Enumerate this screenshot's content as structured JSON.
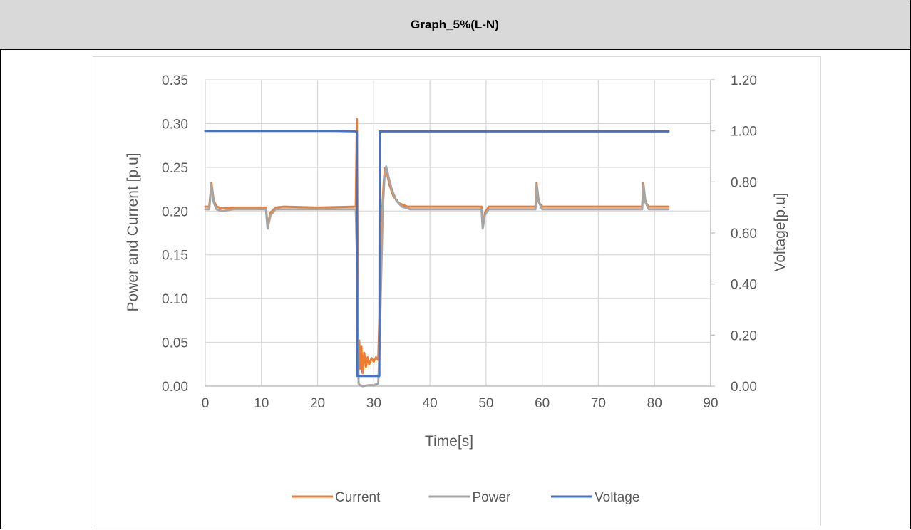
{
  "header": {
    "title": "Graph_5%(L-N)"
  },
  "chart_data": {
    "type": "line",
    "title": "",
    "xlabel": "Time[s]",
    "ylabel": "Power and Current [p.u]",
    "y2label": "Voltage[p.u]",
    "xlim": [
      0,
      90
    ],
    "ylim": [
      0,
      0.35
    ],
    "y2lim": [
      0,
      1.2
    ],
    "grid": true,
    "legend_position": "bottom",
    "x_ticks": [
      "0",
      "10",
      "20",
      "30",
      "40",
      "50",
      "60",
      "70",
      "80",
      "90"
    ],
    "y_ticks": [
      "0.00",
      "0.05",
      "0.10",
      "0.15",
      "0.20",
      "0.25",
      "0.30",
      "0.35"
    ],
    "y2_ticks": [
      "0.00",
      "0.20",
      "0.40",
      "0.60",
      "0.80",
      "1.00",
      "1.20"
    ],
    "series": [
      {
        "name": "Current",
        "color": "#ed7d31",
        "axis": "left",
        "x": [
          0,
          0.7,
          1.1,
          1.5,
          2.0,
          3.0,
          5.0,
          10.8,
          11.1,
          11.6,
          12.5,
          14,
          20,
          26.8,
          27.0,
          27.2,
          27.4,
          27.6,
          27.8,
          28.0,
          28.3,
          28.6,
          28.9,
          29.2,
          29.6,
          30.0,
          30.4,
          30.8,
          31.2,
          31.5,
          31.8,
          32.0,
          32.3,
          32.8,
          33.5,
          34.5,
          36,
          40,
          49.2,
          49.4,
          49.8,
          50.5,
          52,
          58.8,
          59.0,
          59.4,
          60.0,
          61,
          65,
          77.8,
          78.0,
          78.4,
          79.0,
          80,
          82.5
        ],
        "y": [
          0.205,
          0.205,
          0.232,
          0.212,
          0.205,
          0.203,
          0.204,
          0.204,
          0.183,
          0.198,
          0.204,
          0.205,
          0.204,
          0.205,
          0.305,
          0.03,
          0.052,
          0.02,
          0.045,
          0.015,
          0.038,
          0.022,
          0.033,
          0.025,
          0.032,
          0.028,
          0.033,
          0.03,
          0.12,
          0.2,
          0.235,
          0.249,
          0.245,
          0.23,
          0.217,
          0.209,
          0.205,
          0.205,
          0.205,
          0.182,
          0.198,
          0.205,
          0.205,
          0.205,
          0.232,
          0.21,
          0.205,
          0.205,
          0.205,
          0.205,
          0.232,
          0.21,
          0.205,
          0.205,
          0.205
        ]
      },
      {
        "name": "Power",
        "color": "#a5a5a5",
        "axis": "left",
        "x": [
          0,
          0.7,
          1.1,
          1.5,
          2.0,
          3.0,
          5.0,
          10.8,
          11.1,
          11.6,
          12.5,
          14,
          20,
          26.8,
          27.0,
          27.3,
          27.6,
          28.0,
          29.0,
          30.0,
          30.8,
          31.0,
          31.3,
          31.6,
          31.9,
          32.2,
          32.6,
          33.2,
          34.0,
          35.0,
          36.5,
          40,
          49.2,
          49.4,
          49.8,
          50.5,
          52,
          58.8,
          59.0,
          59.4,
          60.0,
          61,
          65,
          77.8,
          78.0,
          78.4,
          79.0,
          80,
          82.5
        ],
        "y": [
          0.202,
          0.202,
          0.23,
          0.21,
          0.202,
          0.2,
          0.202,
          0.202,
          0.18,
          0.195,
          0.202,
          0.202,
          0.202,
          0.202,
          0.15,
          0.003,
          0.001,
          0.0,
          0.001,
          0.001,
          0.003,
          0.035,
          0.12,
          0.2,
          0.238,
          0.251,
          0.24,
          0.225,
          0.212,
          0.205,
          0.202,
          0.202,
          0.202,
          0.18,
          0.196,
          0.202,
          0.202,
          0.202,
          0.23,
          0.21,
          0.202,
          0.202,
          0.202,
          0.202,
          0.23,
          0.21,
          0.202,
          0.202,
          0.202
        ]
      },
      {
        "name": "Voltage",
        "color": "#4472c4",
        "axis": "right",
        "x": [
          0,
          23.0,
          27.0,
          27.05,
          31.0,
          31.05,
          82.5
        ],
        "y": [
          1.0,
          1.0,
          0.998,
          0.04,
          0.04,
          0.998,
          0.998
        ]
      }
    ]
  }
}
